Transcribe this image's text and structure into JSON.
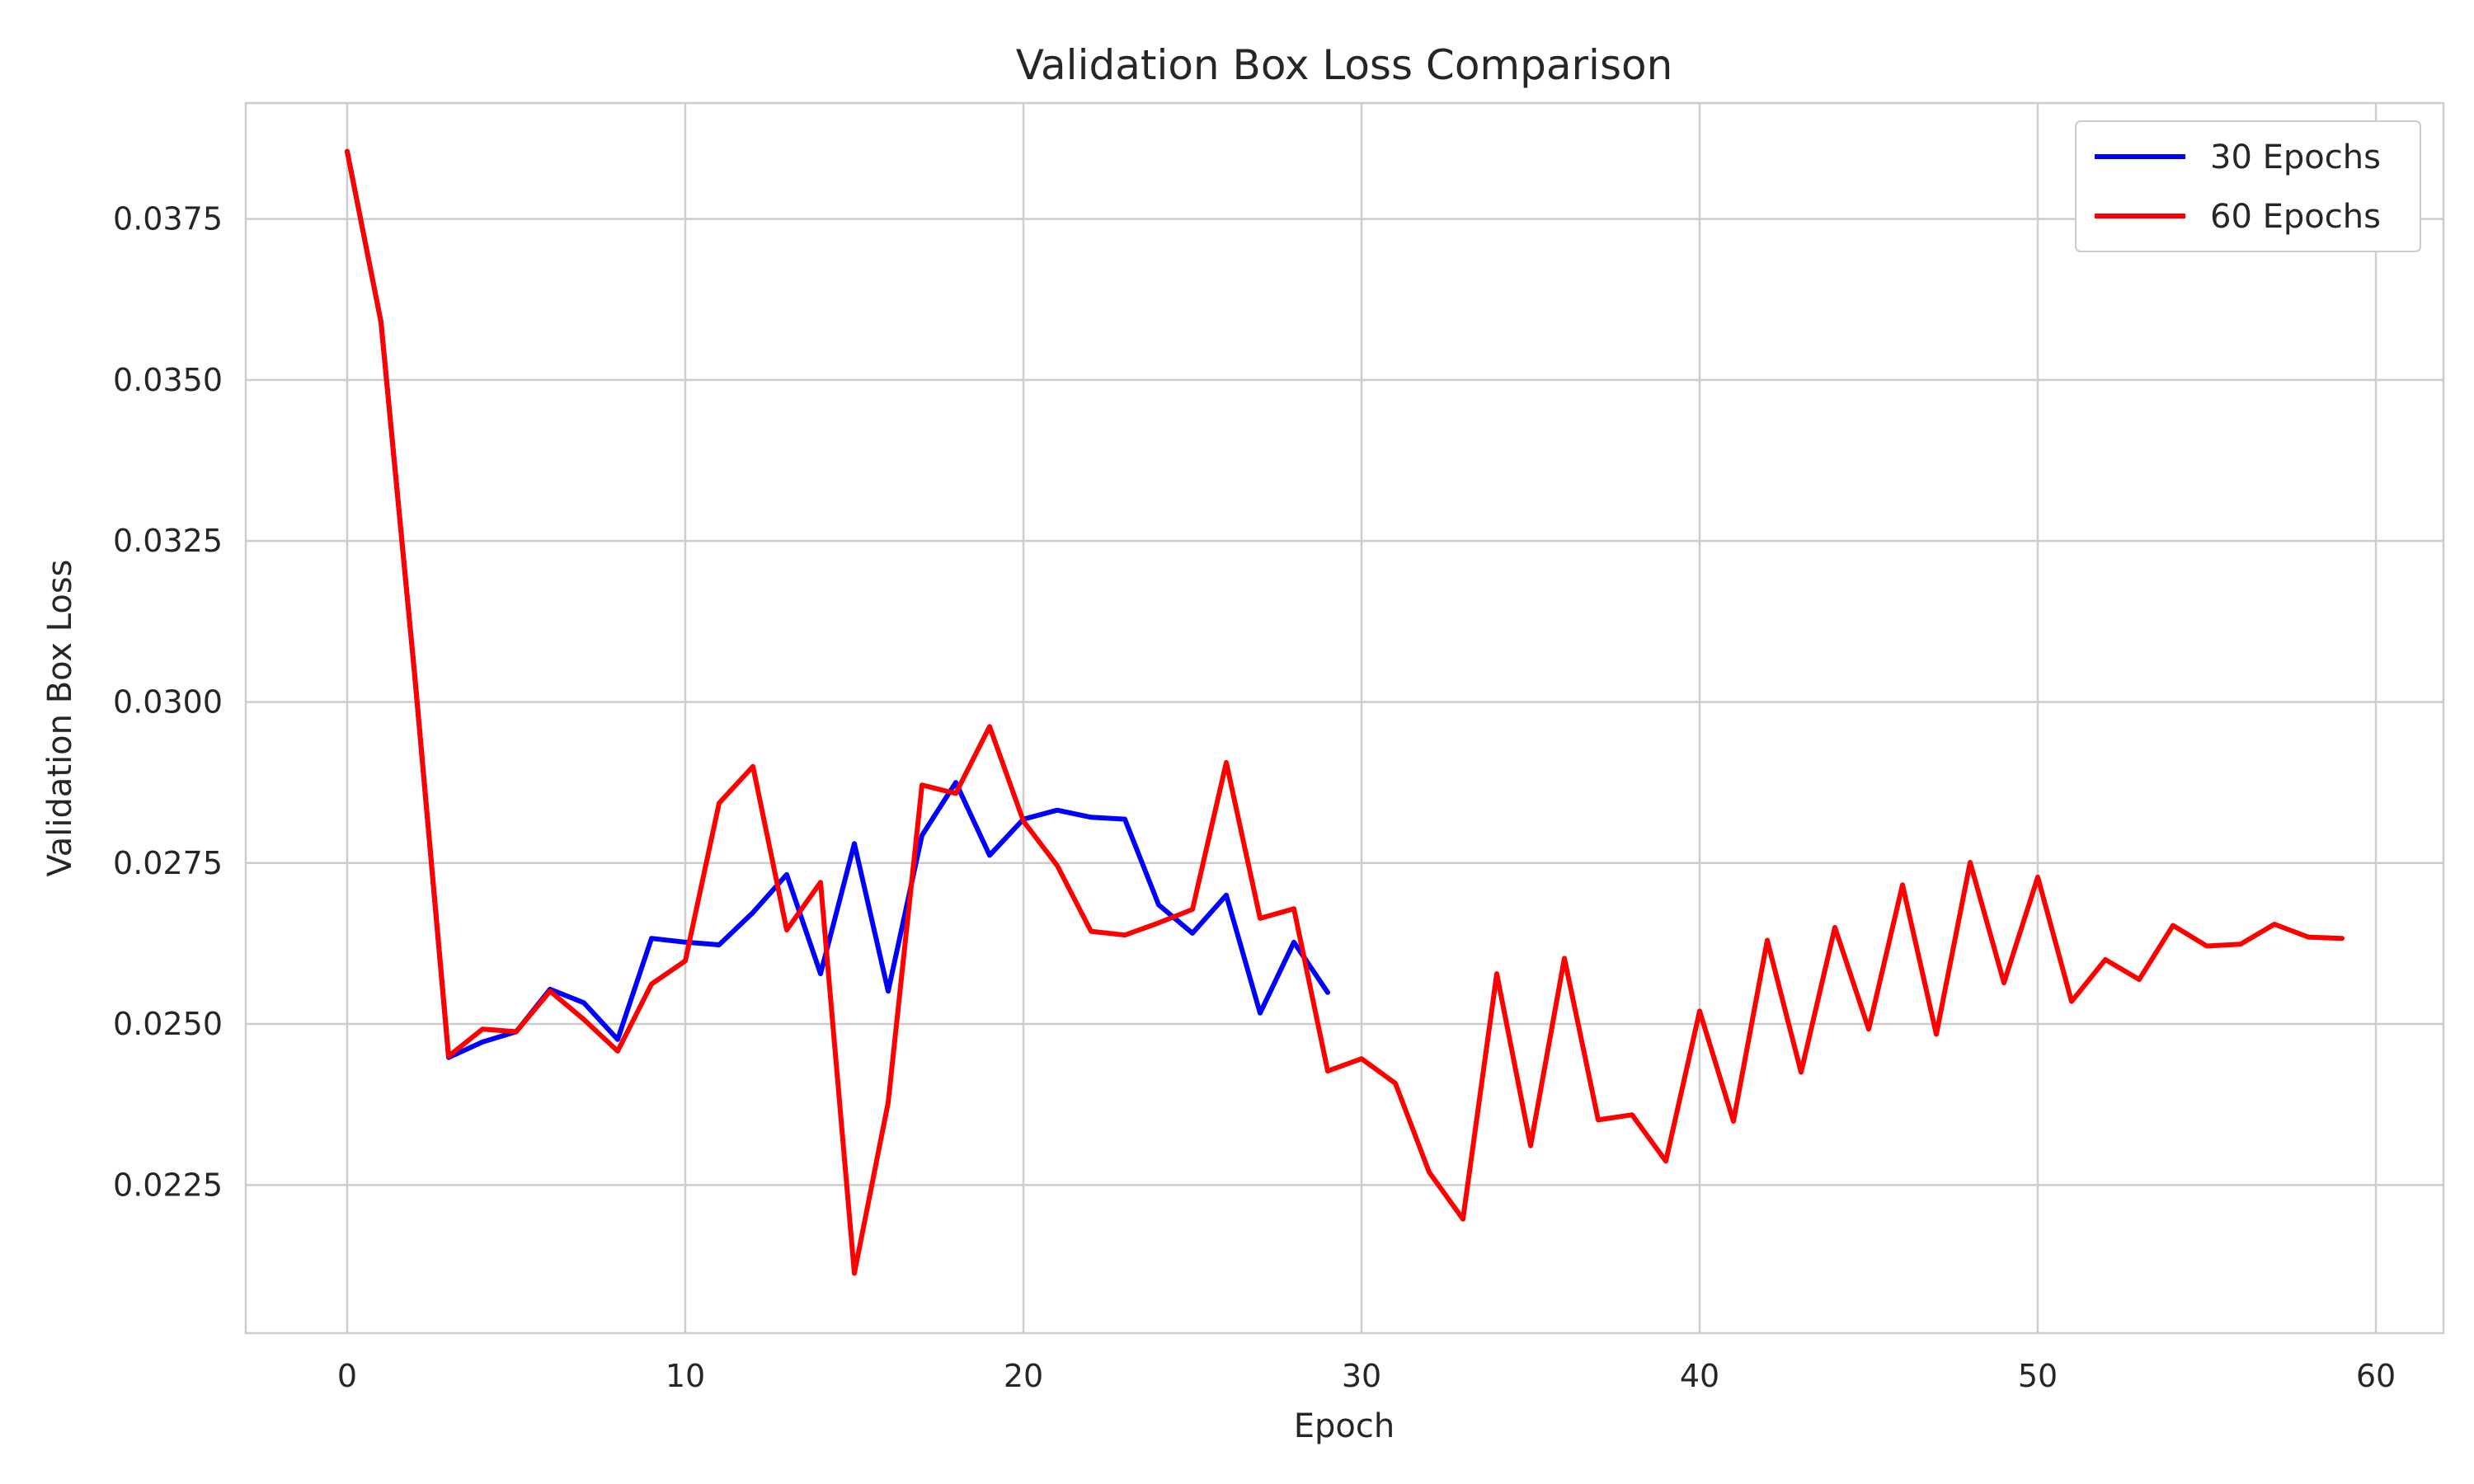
{
  "chart_data": {
    "type": "line",
    "title": "Validation Box Loss Comparison",
    "xlabel": "Epoch",
    "ylabel": "Validation Box Loss",
    "xlim": [
      -3,
      62
    ],
    "ylim": [
      0.0202,
      0.0393
    ],
    "xticks": [
      0,
      10,
      20,
      30,
      40,
      50,
      60
    ],
    "xtick_labels": [
      "0",
      "10",
      "20",
      "30",
      "40",
      "50",
      "60"
    ],
    "yticks": [
      0.0225,
      0.025,
      0.0275,
      0.03,
      0.0325,
      0.035,
      0.0375
    ],
    "ytick_labels": [
      "0.0225",
      "0.0250",
      "0.0275",
      "0.0300",
      "0.0325",
      "0.0350",
      "0.0375"
    ],
    "grid": true,
    "legend_position": "top-right",
    "series": [
      {
        "name": "30 Epochs",
        "color": "#0000ff",
        "x": [
          0,
          1,
          2,
          3,
          4,
          5,
          6,
          7,
          8,
          9,
          10,
          11,
          12,
          13,
          14,
          15,
          16,
          17,
          18,
          19,
          20,
          21,
          22,
          23,
          24,
          25,
          26,
          27,
          28,
          29
        ],
        "y": [
          0.03855,
          0.0359,
          0.0304,
          0.02448,
          0.02472,
          0.02488,
          0.02554,
          0.02533,
          0.02476,
          0.02633,
          0.02627,
          0.02623,
          0.02673,
          0.02732,
          0.02578,
          0.0278,
          0.02551,
          0.02793,
          0.02875,
          0.02762,
          0.02818,
          0.02832,
          0.02821,
          0.02818,
          0.02685,
          0.02641,
          0.027,
          0.02517,
          0.02627,
          0.02549
        ]
      },
      {
        "name": "60 Epochs",
        "color": "#ff0000",
        "x": [
          0,
          1,
          2,
          3,
          4,
          5,
          6,
          7,
          8,
          9,
          10,
          11,
          12,
          13,
          14,
          15,
          16,
          17,
          18,
          19,
          20,
          21,
          22,
          23,
          24,
          25,
          26,
          27,
          28,
          29,
          30,
          31,
          32,
          33,
          34,
          35,
          36,
          37,
          38,
          39,
          40,
          41,
          42,
          43,
          44,
          45,
          46,
          47,
          48,
          49,
          50,
          51,
          52,
          53,
          54,
          55,
          56,
          57,
          58,
          59
        ],
        "y": [
          0.03855,
          0.0359,
          0.0304,
          0.0245,
          0.02492,
          0.02488,
          0.02551,
          0.02507,
          0.02458,
          0.02562,
          0.02598,
          0.02843,
          0.029,
          0.02646,
          0.0272,
          0.02113,
          0.02378,
          0.02871,
          0.02858,
          0.02962,
          0.02815,
          0.02746,
          0.02644,
          0.02638,
          0.02657,
          0.02678,
          0.02906,
          0.02664,
          0.02679,
          0.02427,
          0.02446,
          0.02408,
          0.0227,
          0.02197,
          0.02578,
          0.02311,
          0.02602,
          0.02351,
          0.02359,
          0.02287,
          0.0252,
          0.02349,
          0.0263,
          0.02425,
          0.0265,
          0.02492,
          0.02716,
          0.02484,
          0.02751,
          0.02564,
          0.02728,
          0.02535,
          0.026,
          0.02569,
          0.02653,
          0.02621,
          0.02624,
          0.02655,
          0.02635,
          0.02633
        ]
      }
    ]
  }
}
